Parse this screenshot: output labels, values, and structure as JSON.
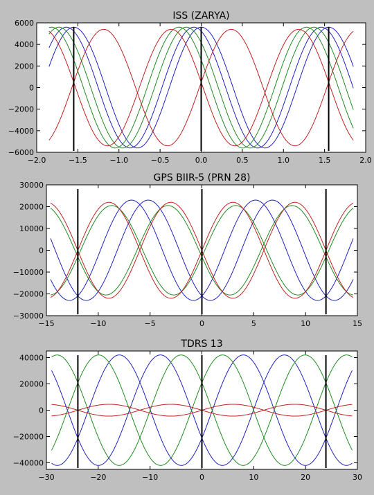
{
  "chart_data": [
    {
      "type": "line",
      "title": "ISS (ZARYA)",
      "xlabel": "",
      "ylabel": "",
      "xlim": [
        -2.0,
        2.0
      ],
      "ylim": [
        -6000,
        6000
      ],
      "xticks": [
        -2.0,
        -1.5,
        -1.0,
        -0.5,
        0.0,
        0.5,
        1.0,
        1.5,
        2.0
      ],
      "xtick_labels": [
        "−2.0",
        "−1.5",
        "−1.0",
        "−0.5",
        "0.0",
        "0.5",
        "1.0",
        "1.5",
        "2.0"
      ],
      "yticks": [
        -6000,
        -4000,
        -2000,
        0,
        2000,
        4000,
        6000
      ],
      "ytick_labels": [
        "−6000",
        "−4000",
        "−2000",
        "0",
        "2000",
        "4000",
        "6000"
      ],
      "x_data_range": [
        -1.85,
        1.85
      ],
      "vertical_lines": [
        -1.55,
        0.0,
        1.55
      ],
      "grid": false,
      "period": 1.55,
      "series": [
        {
          "color": "#2020c0",
          "amplitude": 5600,
          "phase": 0.0
        },
        {
          "color": "#2020c0",
          "amplitude": 5600,
          "phase": -0.09
        },
        {
          "color": "#208a20",
          "amplitude": 5600,
          "phase": -0.18
        },
        {
          "color": "#208a20",
          "amplitude": 5600,
          "phase": -0.27
        },
        {
          "color": "#c02020",
          "amplitude": 5400,
          "phase": 0.365
        },
        {
          "color": "#c02020",
          "amplitude": 5400,
          "phase": -0.365
        }
      ]
    },
    {
      "type": "line",
      "title": "GPS BIIR-5  (PRN 28)",
      "xlabel": "",
      "ylabel": "",
      "xlim": [
        -15,
        15
      ],
      "ylim": [
        -30000,
        30000
      ],
      "xticks": [
        -15,
        -10,
        -5,
        0,
        5,
        10,
        15
      ],
      "xtick_labels": [
        "−15",
        "−10",
        "−5",
        "0",
        "5",
        "10",
        "15"
      ],
      "yticks": [
        -30000,
        -20000,
        -10000,
        0,
        10000,
        20000,
        30000
      ],
      "ytick_labels": [
        "−30000",
        "−20000",
        "−10000",
        "0",
        "10000",
        "20000",
        "30000"
      ],
      "x_data_range": [
        -14.6,
        14.6
      ],
      "vertical_lines": [
        -11.97,
        0.0,
        11.97
      ],
      "grid": false,
      "period": 11.97,
      "series": [
        {
          "color": "#2020c0",
          "amplitude": 23000,
          "phase": 6.8
        },
        {
          "color": "#2020c0",
          "amplitude": 23000,
          "phase": -6.8
        },
        {
          "color": "#208a20",
          "amplitude": 20500,
          "phase": 8.7
        },
        {
          "color": "#208a20",
          "amplitude": 20500,
          "phase": -8.7
        },
        {
          "color": "#c02020",
          "amplitude": 22000,
          "phase": 3.0
        },
        {
          "color": "#c02020",
          "amplitude": 22000,
          "phase": -3.0
        }
      ]
    },
    {
      "type": "line",
      "title": "TDRS 13",
      "xlabel": "",
      "ylabel": "",
      "xlim": [
        -30,
        30
      ],
      "ylim": [
        -45000,
        45000
      ],
      "xticks": [
        -30,
        -20,
        -10,
        0,
        10,
        20,
        30
      ],
      "xtick_labels": [
        "−30",
        "−20",
        "−10",
        "0",
        "10",
        "20",
        "30"
      ],
      "yticks": [
        -40000,
        -20000,
        0,
        20000,
        40000
      ],
      "ytick_labels": [
        "−40000",
        "−20000",
        "0",
        "20000",
        "40000"
      ],
      "x_data_range": [
        -29,
        29
      ],
      "vertical_lines": [
        -23.93,
        0.0,
        23.93
      ],
      "grid": false,
      "period": 23.93,
      "series": [
        {
          "color": "#2020c0",
          "amplitude": 42000,
          "phase": 8.0
        },
        {
          "color": "#2020c0",
          "amplitude": 42000,
          "phase": -8.0
        },
        {
          "color": "#208a20",
          "amplitude": 42000,
          "phase": 4.0
        },
        {
          "color": "#208a20",
          "amplitude": 42000,
          "phase": -4.0
        },
        {
          "color": "#c02020",
          "amplitude": 4500,
          "phase": 6.0
        },
        {
          "color": "#c02020",
          "amplitude": 4500,
          "phase": -6.0
        }
      ]
    }
  ]
}
